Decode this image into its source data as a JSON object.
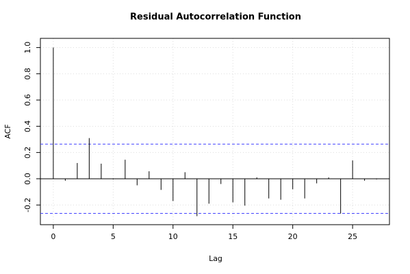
{
  "chart_data": {
    "type": "stem",
    "title": "Residual Autocorrelation Function",
    "x_label": "Lag",
    "y_label": "ACF",
    "x": [
      0,
      1,
      2,
      3,
      4,
      5,
      6,
      7,
      8,
      9,
      10,
      11,
      12,
      13,
      14,
      15,
      16,
      17,
      18,
      19,
      20,
      21,
      22,
      23,
      24,
      25,
      26,
      27
    ],
    "values": [
      1.0,
      -0.015,
      0.12,
      0.31,
      0.115,
      -0.005,
      0.145,
      -0.05,
      0.057,
      -0.085,
      -0.17,
      0.05,
      -0.285,
      -0.19,
      -0.04,
      -0.18,
      -0.205,
      0.01,
      -0.15,
      -0.16,
      -0.08,
      -0.15,
      -0.035,
      0.01,
      -0.265,
      0.14,
      -0.015,
      -0.005
    ],
    "color": "#000000",
    "confidence_bounds": [
      0.264,
      -0.264
    ],
    "bound_color": "#4444ff",
    "xlim": [
      -1.08,
      28.08
    ],
    "ylim": [
      -0.35,
      1.07
    ],
    "xticks": [
      0,
      5,
      10,
      15,
      20,
      25
    ],
    "yticks": [
      -0.2,
      {
        "value": 0,
        "label": "0.0"
      },
      0.2,
      0.4,
      0.6,
      0.8,
      {
        "value": 1,
        "label": "1.0"
      }
    ],
    "grid": true
  }
}
